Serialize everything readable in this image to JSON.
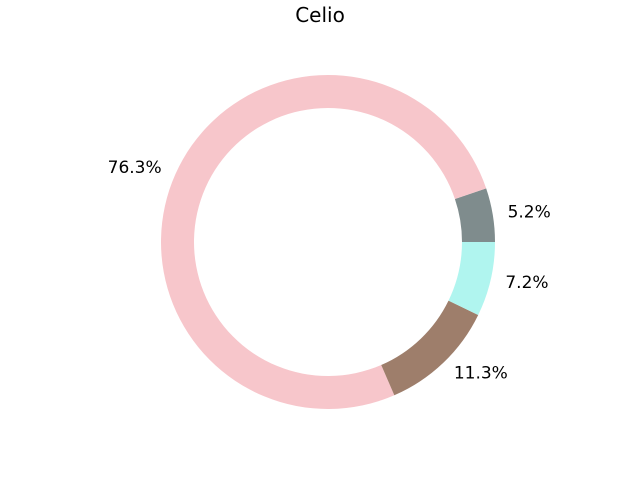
{
  "chart_data": {
    "type": "pie",
    "variant": "donut",
    "title": "Celio",
    "start_angle_deg": 0,
    "direction": "counterclockwise",
    "slices": [
      {
        "label": "5.2%",
        "value": 5.2,
        "color": "#7f8c8d"
      },
      {
        "label": "76.3%",
        "value": 76.3,
        "color": "#f7c6cb"
      },
      {
        "label": "11.3%",
        "value": 11.3,
        "color": "#9e7e6b"
      },
      {
        "label": "7.2%",
        "value": 7.2,
        "color": "#b0f5ef"
      }
    ]
  }
}
